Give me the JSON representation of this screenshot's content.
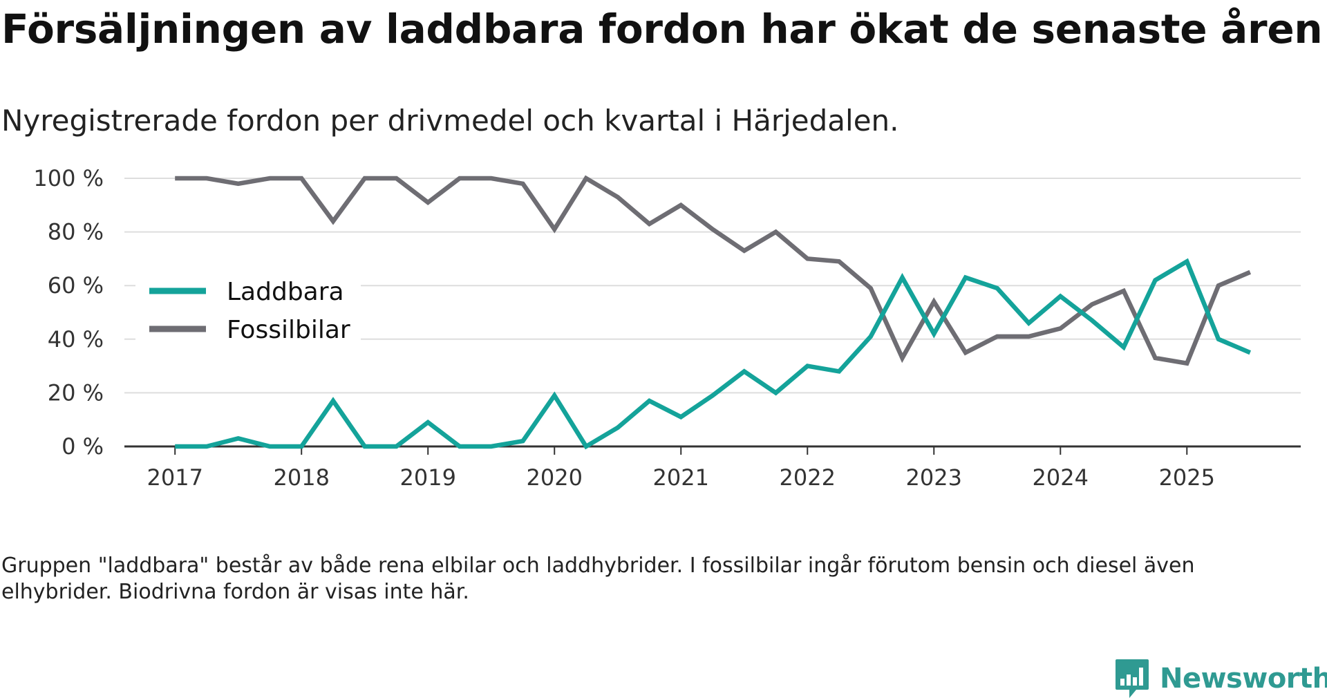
{
  "header": {
    "title": "Försäljningen av laddbara fordon har ökat de senaste åren",
    "subtitle": "Nyregistrerade fordon per drivmedel och kvartal i Härjedalen."
  },
  "footer": {
    "note": "Gruppen \"laddbara\" består av både rena elbilar och laddhybrider. I fossilbilar ingår förutom bensin och diesel även elhybrider. Biodrivna fordon är visas inte här.",
    "brand": "Newsworthy"
  },
  "colors": {
    "laddbara": "#14a39a",
    "fossil": "#6e6d73",
    "grid": "#dddddd",
    "axis": "#333333",
    "brand": "#2f9a92"
  },
  "chart_data": {
    "type": "line",
    "title": "Försäljningen av laddbara fordon har ökat de senaste åren",
    "subtitle": "Nyregistrerade fordon per drivmedel och kvartal i Härjedalen.",
    "xlabel": "",
    "ylabel": "",
    "x_start": 2017.0,
    "x_step": 0.25,
    "xlim": [
      2016.6,
      2025.9
    ],
    "ylim": [
      0,
      100
    ],
    "yticks": [
      0,
      20,
      40,
      60,
      80,
      100
    ],
    "ytick_labels": [
      "0 %",
      "20 %",
      "40 %",
      "60 %",
      "80 %",
      "100 %"
    ],
    "xticks": [
      2017,
      2018,
      2019,
      2020,
      2021,
      2022,
      2023,
      2024,
      2025
    ],
    "xtick_labels": [
      "2017",
      "2018",
      "2019",
      "2020",
      "2021",
      "2022",
      "2023",
      "2024",
      "2025"
    ],
    "grid": true,
    "legend_position": "left-middle",
    "series": [
      {
        "name": "Laddbara",
        "values": [
          0,
          0,
          3,
          0,
          0,
          17,
          0,
          0,
          9,
          0,
          0,
          2,
          19,
          0,
          7,
          17,
          11,
          19,
          28,
          20,
          30,
          28,
          41,
          63,
          42,
          63,
          59,
          46,
          56,
          47,
          37,
          62,
          69,
          40,
          35
        ]
      },
      {
        "name": "Fossilbilar",
        "values": [
          100,
          100,
          98,
          100,
          100,
          84,
          100,
          100,
          91,
          100,
          100,
          98,
          81,
          100,
          93,
          83,
          90,
          81,
          73,
          80,
          70,
          69,
          59,
          33,
          54,
          35,
          41,
          41,
          44,
          53,
          58,
          33,
          31,
          60,
          65
        ]
      }
    ]
  }
}
